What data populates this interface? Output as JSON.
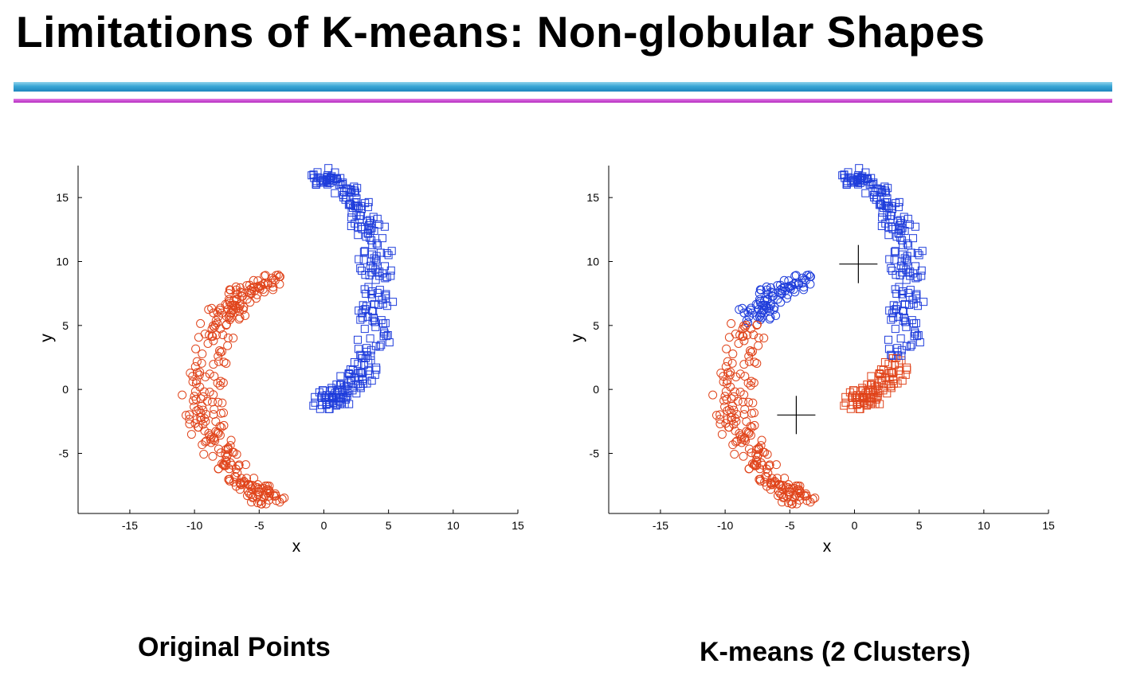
{
  "slide": {
    "title": "Limitations of K-means: Non-globular Shapes"
  },
  "captions": {
    "left": "Original Points",
    "right": "K-means  (2 Clusters)"
  },
  "colors": {
    "blue_series": "#1f3ddb",
    "red_series": "#e0441b",
    "axis": "#000000",
    "rule_blue": "#3aa7d6",
    "rule_purple": "#b62cc0"
  },
  "chart_data": [
    {
      "type": "scatter",
      "panel": "Original Points",
      "xlabel": "x",
      "ylabel": "y",
      "xlim": [
        -19,
        15
      ],
      "ylim": [
        -9.7,
        17.5
      ],
      "xticks": [
        -15,
        -10,
        -5,
        0,
        5,
        10,
        15
      ],
      "yticks": [
        -5,
        0,
        5,
        10,
        15
      ],
      "grid": false,
      "series": [
        {
          "marker": "square",
          "color": "#1f3ddb",
          "shape": "upper crescent",
          "arc": {
            "cx": 0,
            "cy": 7.8,
            "rx": 4.2,
            "ry": 8.7,
            "t_from": -100,
            "t_to": 100,
            "thickness": 2.2
          },
          "count": 300
        },
        {
          "marker": "circle",
          "color": "#e0441b",
          "shape": "lower crescent",
          "arc": {
            "cx": -2.5,
            "cy": 0,
            "rx": 6.8,
            "ry": 8.7,
            "t_from": 96,
            "t_to": 265,
            "thickness": 2.2
          },
          "count": 300
        }
      ]
    },
    {
      "type": "scatter",
      "panel": "K-means  (2 Clusters)",
      "xlabel": "x",
      "ylabel": "y",
      "xlim": [
        -19,
        15
      ],
      "ylim": [
        -9.7,
        17.5
      ],
      "xticks": [
        -15,
        -10,
        -5,
        0,
        5,
        10,
        15
      ],
      "yticks": [
        -5,
        0,
        5,
        10,
        15
      ],
      "grid": false,
      "centroids": [
        {
          "x": 0.3,
          "y": 9.8
        },
        {
          "x": -4.5,
          "y": -2.0
        }
      ],
      "series": [
        {
          "marker": "square",
          "color": "#1f3ddb",
          "shape": "upper crescent",
          "cluster_rule": "y > 2.5",
          "arc": {
            "cx": 0,
            "cy": 7.8,
            "rx": 4.2,
            "ry": 8.7,
            "t_from": -100,
            "t_to": 100,
            "thickness": 2.2
          },
          "count": 300
        },
        {
          "marker": "circle",
          "color": "#e0441b",
          "shape": "lower crescent",
          "cluster_rule": "y < 5.2",
          "arc": {
            "cx": -2.5,
            "cy": 0,
            "rx": 6.8,
            "ry": 8.7,
            "t_from": 96,
            "t_to": 265,
            "thickness": 2.2
          },
          "count": 300
        }
      ]
    }
  ]
}
